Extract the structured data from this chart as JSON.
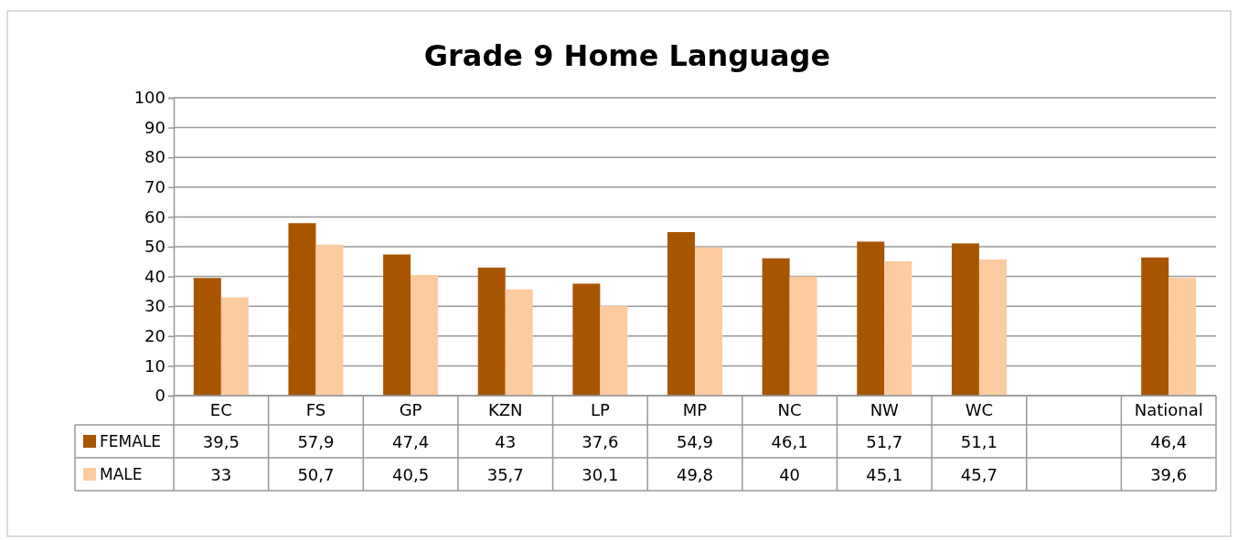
{
  "chart_data": {
    "type": "bar",
    "title": "Grade 9 Home Language",
    "categories": [
      "EC",
      "FS",
      "GP",
      "KZN",
      "LP",
      "MP",
      "NC",
      "NW",
      "WC",
      null,
      "National"
    ],
    "series": [
      {
        "name": "FEMALE",
        "color": "#a85500",
        "values": [
          39.5,
          57.9,
          47.4,
          43,
          37.6,
          54.9,
          46.1,
          51.7,
          51.1,
          null,
          46.4
        ],
        "value_labels": [
          "39,5",
          "57,9",
          "47,4",
          "43",
          "37,6",
          "54,9",
          "46,1",
          "51,7",
          "51,1",
          null,
          "46,4"
        ]
      },
      {
        "name": "MALE",
        "color": "#fdcba0",
        "values": [
          33,
          50.7,
          40.5,
          35.7,
          30.1,
          49.8,
          40,
          45.1,
          45.7,
          null,
          39.6
        ],
        "value_labels": [
          "33",
          "50,7",
          "40,5",
          "35,7",
          "30,1",
          "49,8",
          "40",
          "45,1",
          "45,7",
          null,
          "39,6"
        ]
      }
    ],
    "ylim": [
      0,
      100
    ],
    "yticks": [
      0,
      10,
      20,
      30,
      40,
      50,
      60,
      70,
      80,
      90,
      100
    ],
    "grid": "y",
    "legend": "bottom"
  }
}
